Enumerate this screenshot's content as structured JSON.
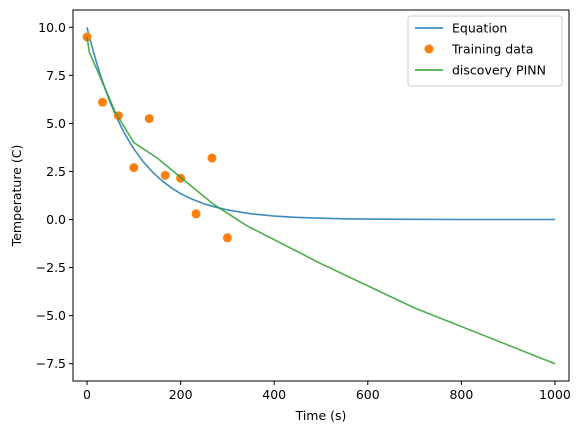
{
  "chart_data": {
    "type": "line",
    "title": "",
    "xlabel": "Time (s)",
    "ylabel": "Temperature (C)",
    "xlim": [
      -30,
      1030
    ],
    "ylim": [
      -8.4,
      10.9
    ],
    "xticks": [
      0,
      200,
      400,
      600,
      800,
      1000
    ],
    "xtick_labels": [
      "0",
      "200",
      "400",
      "600",
      "800",
      "1000"
    ],
    "yticks": [
      -7.5,
      -5.0,
      -2.5,
      0.0,
      2.5,
      5.0,
      7.5,
      10.0
    ],
    "ytick_labels": [
      "−7.5",
      "−5.0",
      "−2.5",
      "0.0",
      "2.5",
      "5.0",
      "7.5",
      "10.0"
    ],
    "grid": false,
    "legend_position": "top-right",
    "series": [
      {
        "name": "Equation",
        "kind": "line",
        "color": "#1f77b4",
        "x": [
          0,
          10,
          20,
          30,
          40,
          50,
          60,
          70,
          80,
          90,
          100,
          120,
          140,
          160,
          180,
          200,
          225,
          250,
          275,
          300,
          350,
          400,
          450,
          500,
          550,
          600,
          700,
          800,
          900,
          1000
        ],
        "y": [
          10.0,
          9.05,
          8.19,
          7.41,
          6.7,
          6.07,
          5.49,
          4.97,
          4.49,
          4.07,
          3.68,
          3.01,
          2.47,
          2.02,
          1.65,
          1.35,
          1.05,
          0.82,
          0.64,
          0.5,
          0.3,
          0.18,
          0.11,
          0.07,
          0.04,
          0.02,
          0.01,
          0.0,
          0.0,
          0.0
        ]
      },
      {
        "name": "Training data",
        "kind": "scatter",
        "color": "#ff7f0e",
        "x": [
          0,
          33,
          67,
          100,
          133,
          167,
          200,
          233,
          267,
          300
        ],
        "y": [
          9.5,
          6.1,
          5.4,
          2.7,
          5.25,
          2.3,
          2.15,
          0.3,
          3.2,
          -0.95
        ]
      },
      {
        "name": "discovery PINN",
        "kind": "line",
        "color": "#2ca02c",
        "x": [
          0,
          5,
          30,
          60,
          100,
          150,
          200,
          270,
          340,
          500,
          700,
          1000
        ],
        "y": [
          9.5,
          8.7,
          7.3,
          5.6,
          4.0,
          3.2,
          2.2,
          0.8,
          -0.3,
          -2.3,
          -4.6,
          -7.5
        ]
      }
    ]
  }
}
